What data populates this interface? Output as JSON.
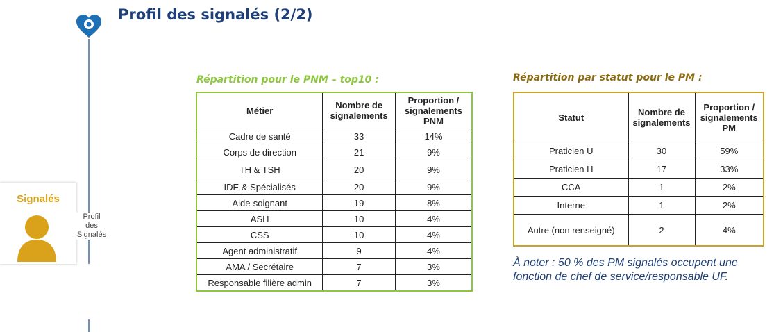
{
  "title": "Profil des signalés (2/2)",
  "sidebar": {
    "card_label": "Signalés",
    "line1": "Profil",
    "line2": "des",
    "line3": "Signalés"
  },
  "pnm": {
    "caption": "Répartition pour le PNM – top10 :",
    "headers": [
      "Métier",
      "Nombre de signalements",
      "Proportion / signalements PNM"
    ],
    "rows": [
      [
        "Cadre de santé",
        "33",
        "14%"
      ],
      [
        "Corps de direction",
        "21",
        "9%"
      ],
      [
        "TH & TSH",
        "20",
        "9%"
      ],
      [
        "IDE & Spécialisés",
        "20",
        "9%"
      ],
      [
        "Aide-soignant",
        "19",
        "8%"
      ],
      [
        "ASH",
        "10",
        "4%"
      ],
      [
        "CSS",
        "10",
        "4%"
      ],
      [
        "Agent administratif",
        "9",
        "4%"
      ],
      [
        "AMA / Secrétaire",
        "7",
        "3%"
      ],
      [
        "Responsable filière admin",
        "7",
        "3%"
      ]
    ]
  },
  "pm": {
    "caption": "Répartition par statut pour le PM :",
    "headers": [
      "Statut",
      "Nombre de signalements",
      "Proportion / signalements PM"
    ],
    "rows": [
      [
        "Praticien U",
        "30",
        "59%"
      ],
      [
        "Praticien H",
        "17",
        "33%"
      ],
      [
        "CCA",
        "1",
        "2%"
      ],
      [
        "Interne",
        "1",
        "2%"
      ],
      [
        "Autre (non renseigné)",
        "2",
        "4%"
      ]
    ]
  },
  "note": "À noter : 50 % des PM signalés occupent une fonction de chef de service/responsable UF.",
  "colors": {
    "title_blue": "#1e3f78",
    "accent_green": "#8dc63f",
    "accent_gold": "#c9a227",
    "avatar_gold": "#d9a21a"
  }
}
